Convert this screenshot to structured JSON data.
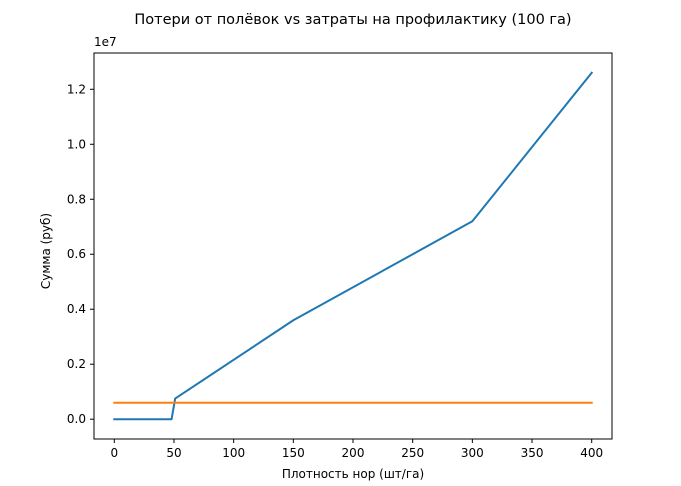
{
  "chart_data": {
    "type": "line",
    "title": "Потери от полёвок vs затраты на профилактику (100 га)",
    "xlabel": "Плотность нор (шт/га)",
    "ylabel": "Сумма (руб)",
    "y_offset_label": "1e7",
    "y_scale": 10000000,
    "xlim": [
      -17,
      417
    ],
    "ylim": [
      -720000,
      13320000
    ],
    "x_ticks": [
      0,
      50,
      100,
      150,
      200,
      250,
      300,
      350,
      400
    ],
    "x_tick_labels": [
      "0",
      "50",
      "100",
      "150",
      "200",
      "250",
      "300",
      "350",
      "400"
    ],
    "y_ticks": [
      0,
      2000000,
      4000000,
      6000000,
      8000000,
      10000000,
      12000000
    ],
    "y_tick_labels": [
      "0.0",
      "0.2",
      "0.4",
      "0.6",
      "0.8",
      "1.0",
      "1.2"
    ],
    "grid": false,
    "legend": "none",
    "series": [
      {
        "color": "#1f77b4",
        "x": [
          0,
          48,
          51,
          150,
          300,
          400
        ],
        "y": [
          0,
          0,
          750000,
          3600000,
          7200000,
          12600000
        ]
      },
      {
        "color": "#ff7f0e",
        "x": [
          0,
          400
        ],
        "y": [
          600000,
          600000
        ]
      }
    ]
  }
}
